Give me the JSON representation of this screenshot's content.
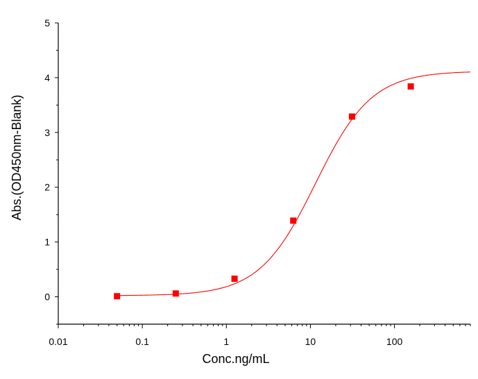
{
  "chart_data": {
    "type": "scatter",
    "title": "",
    "xlabel": "Conc.ng/mL",
    "ylabel": "Abs.(OD450nm-Blank)",
    "x_scale": "log",
    "xlim": [
      0.01,
      800
    ],
    "ylim": [
      -0.5,
      5
    ],
    "x_ticks": [
      0.01,
      0.1,
      1,
      10,
      100
    ],
    "x_tick_labels": [
      "0.01",
      "0.1",
      "1",
      "10",
      "100"
    ],
    "y_ticks": [
      0,
      1,
      2,
      3,
      4,
      5
    ],
    "y_tick_labels": [
      "0",
      "1",
      "2",
      "3",
      "4",
      "5"
    ],
    "grid": false,
    "legend": "none",
    "series": [
      {
        "kind": "points",
        "color": "#ff0000",
        "marker": "square",
        "x": [
          0.05,
          0.25,
          1.25,
          6.25,
          31.25,
          156.25
        ],
        "y": [
          0.01,
          0.06,
          0.33,
          1.39,
          3.29,
          3.84
        ]
      },
      {
        "kind": "fit-curve",
        "color": "#ff0000",
        "model": "4PL",
        "params": {
          "bottom": 0.02,
          "top": 4.12,
          "ec50": 11.5,
          "hill": 1.3
        },
        "x_range": [
          0.05,
          800
        ]
      }
    ]
  }
}
